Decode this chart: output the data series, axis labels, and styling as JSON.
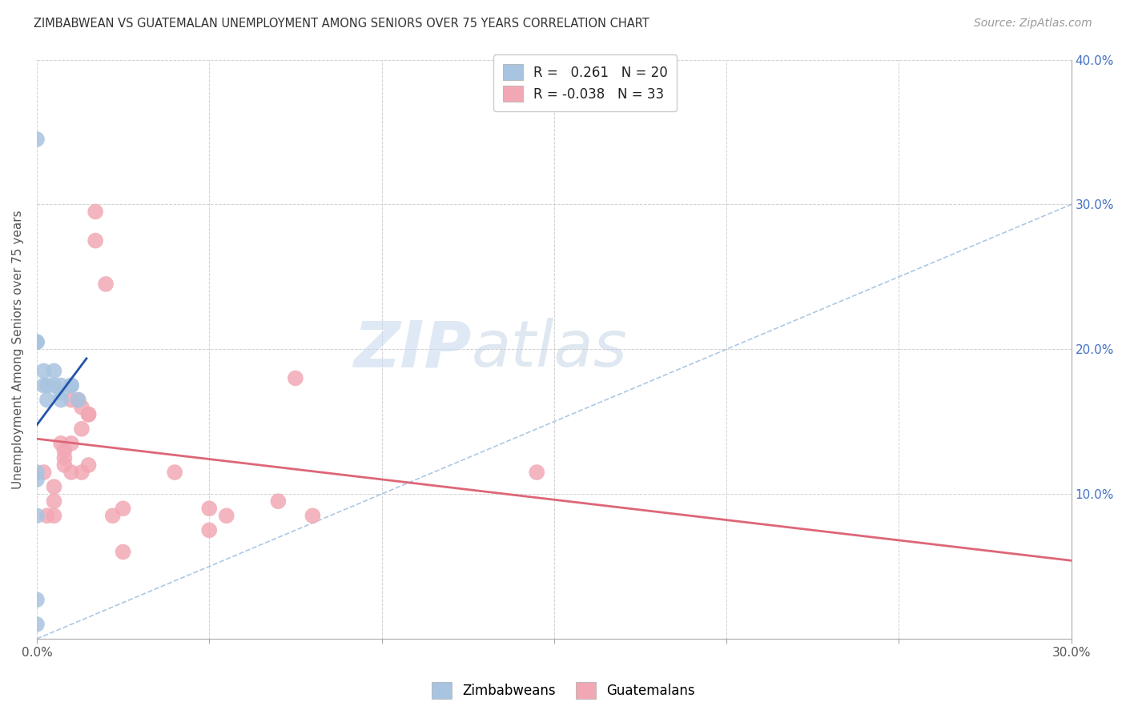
{
  "title": "ZIMBABWEAN VS GUATEMALAN UNEMPLOYMENT AMONG SENIORS OVER 75 YEARS CORRELATION CHART",
  "source": "Source: ZipAtlas.com",
  "ylabel": "Unemployment Among Seniors over 75 years",
  "xlim": [
    0,
    0.3
  ],
  "ylim": [
    0,
    0.4
  ],
  "xticks": [
    0.0,
    0.05,
    0.1,
    0.15,
    0.2,
    0.25,
    0.3
  ],
  "xtick_labels_show": [
    "0.0%",
    "",
    "",
    "",
    "",
    "",
    "30.0%"
  ],
  "yticks": [
    0.0,
    0.1,
    0.2,
    0.3,
    0.4
  ],
  "ytick_labels_right": [
    "",
    "10.0%",
    "20.0%",
    "30.0%",
    "40.0%"
  ],
  "zimbabwe_R": 0.261,
  "zimbabwe_N": 20,
  "guatemalan_R": -0.038,
  "guatemalan_N": 33,
  "zimbabwe_color": "#a8c4e0",
  "guatemalan_color": "#f2a8b4",
  "zimbabwe_line_color": "#2255aa",
  "guatemalan_line_color": "#dd6677",
  "diag_color": "#99bbdd",
  "watermark_zip": "ZIP",
  "watermark_atlas": "atlas",
  "zimbabwe_x": [
    0.0,
    0.0,
    0.0,
    0.002,
    0.002,
    0.003,
    0.003,
    0.005,
    0.005,
    0.007,
    0.007,
    0.007,
    0.01,
    0.01,
    0.012,
    0.0,
    0.0,
    0.0,
    0.0,
    0.0
  ],
  "zimbabwe_y": [
    0.345,
    0.205,
    0.205,
    0.185,
    0.175,
    0.175,
    0.165,
    0.175,
    0.185,
    0.17,
    0.165,
    0.175,
    0.175,
    0.175,
    0.165,
    0.115,
    0.11,
    0.085,
    0.027,
    0.01
  ],
  "guatemalan_x": [
    0.002,
    0.003,
    0.005,
    0.005,
    0.005,
    0.007,
    0.008,
    0.008,
    0.008,
    0.01,
    0.01,
    0.01,
    0.012,
    0.013,
    0.013,
    0.013,
    0.015,
    0.015,
    0.015,
    0.017,
    0.017,
    0.02,
    0.022,
    0.025,
    0.025,
    0.04,
    0.05,
    0.05,
    0.055,
    0.07,
    0.075,
    0.08,
    0.145
  ],
  "guatemalan_y": [
    0.115,
    0.085,
    0.105,
    0.095,
    0.085,
    0.135,
    0.13,
    0.125,
    0.12,
    0.165,
    0.135,
    0.115,
    0.165,
    0.16,
    0.145,
    0.115,
    0.155,
    0.155,
    0.12,
    0.295,
    0.275,
    0.245,
    0.085,
    0.09,
    0.06,
    0.115,
    0.09,
    0.075,
    0.085,
    0.095,
    0.18,
    0.085,
    0.115
  ]
}
